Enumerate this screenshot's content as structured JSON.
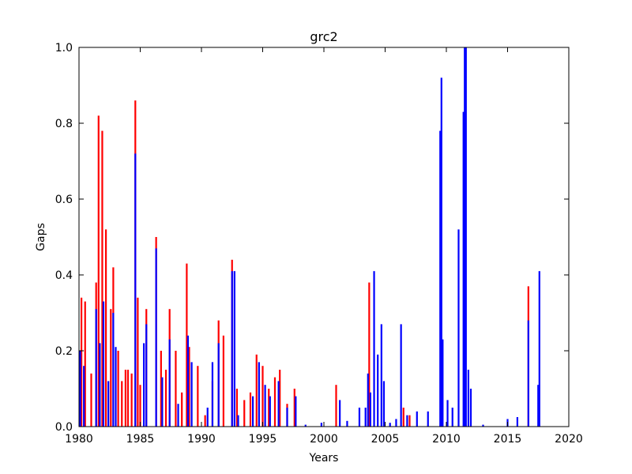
{
  "chart_data": {
    "type": "bar",
    "title": "grc2",
    "x_label": "Years",
    "y_label": "Gaps",
    "xlim": [
      1980,
      2020
    ],
    "xticks": [
      1980,
      1985,
      1990,
      1995,
      2000,
      2005,
      2010,
      2015,
      2020
    ],
    "ylim": [
      0,
      1
    ],
    "yticks": [
      {
        "value": 0,
        "label": "0.0"
      },
      0.2,
      0.4,
      0.6,
      0.8,
      {
        "value": 1,
        "label": "1.0"
      }
    ],
    "series": [
      {
        "color": "#ff0000",
        "x": [
          1980.2,
          1980.5,
          1981.0,
          1981.4,
          1981.6,
          1981.9,
          1982.2,
          1982.6,
          1982.8,
          1983.2,
          1983.5,
          1983.8,
          1984.0,
          1984.3,
          1984.6,
          1984.8,
          1985.0,
          1985.5,
          1986.3,
          1986.7,
          1987.1,
          1987.4,
          1987.9,
          1988.4,
          1988.8,
          1989.0,
          1989.7,
          1990.3,
          1990.9,
          1991.4,
          1991.8,
          1992.5,
          1992.9,
          1993.5,
          1994.0,
          1994.5,
          1995.0,
          1995.5,
          1996.0,
          1996.4,
          1997.0,
          1997.6,
          2001.0,
          2003.7,
          2006.5,
          2007.0,
          2016.7
        ],
        "values": [
          0.34,
          0.33,
          0.14,
          0.38,
          0.82,
          0.78,
          0.52,
          0.31,
          0.42,
          0.2,
          0.12,
          0.15,
          0.15,
          0.14,
          0.86,
          0.34,
          0.11,
          0.31,
          0.5,
          0.2,
          0.15,
          0.31,
          0.2,
          0.09,
          0.43,
          0.21,
          0.16,
          0.03,
          0.12,
          0.28,
          0.24,
          0.44,
          0.1,
          0.07,
          0.09,
          0.19,
          0.16,
          0.1,
          0.13,
          0.15,
          0.06,
          0.1,
          0.11,
          0.38,
          0.05,
          0.03,
          0.37
        ]
      },
      {
        "color": "#0000ff",
        "x": [
          1980.1,
          1980.4,
          1981.4,
          1981.7,
          1982.0,
          1982.4,
          1982.8,
          1983.0,
          1984.6,
          1985.3,
          1985.5,
          1986.3,
          1986.8,
          1987.4,
          1988.1,
          1988.9,
          1989.2,
          1990.5,
          1990.9,
          1991.4,
          1992.5,
          1992.7,
          1993.0,
          1994.2,
          1994.7,
          1995.2,
          1995.6,
          1996.3,
          1997.0,
          1997.7,
          1998.5,
          1999.8,
          2001.3,
          2001.9,
          2002.9,
          2003.4,
          2003.6,
          2003.8,
          2004.1,
          2004.4,
          2004.7,
          2004.9,
          2005.4,
          2005.9,
          2006.3,
          2006.8,
          2007.6,
          2008.5,
          2009.5,
          2009.6,
          2009.7,
          2010.1,
          2010.5,
          2011.0,
          2011.4,
          2011.5,
          2011.6,
          2011.8,
          2012.0,
          2013.0,
          2015.0,
          2015.8,
          2016.7,
          2017.5,
          2017.6
        ],
        "values": [
          0.2,
          0.16,
          0.31,
          0.22,
          0.33,
          0.12,
          0.3,
          0.21,
          0.72,
          0.22,
          0.27,
          0.47,
          0.13,
          0.23,
          0.06,
          0.24,
          0.17,
          0.05,
          0.17,
          0.22,
          0.41,
          0.41,
          0.03,
          0.08,
          0.17,
          0.11,
          0.08,
          0.12,
          0.05,
          0.08,
          0.005,
          0.01,
          0.07,
          0.015,
          0.05,
          0.05,
          0.14,
          0.09,
          0.41,
          0.19,
          0.27,
          0.12,
          0.01,
          0.02,
          0.27,
          0.03,
          0.04,
          0.04,
          0.78,
          0.92,
          0.23,
          0.07,
          0.05,
          0.52,
          0.83,
          1.0,
          1.0,
          0.15,
          0.1,
          0.005,
          0.02,
          0.025,
          0.28,
          0.11,
          0.41
        ]
      }
    ]
  }
}
